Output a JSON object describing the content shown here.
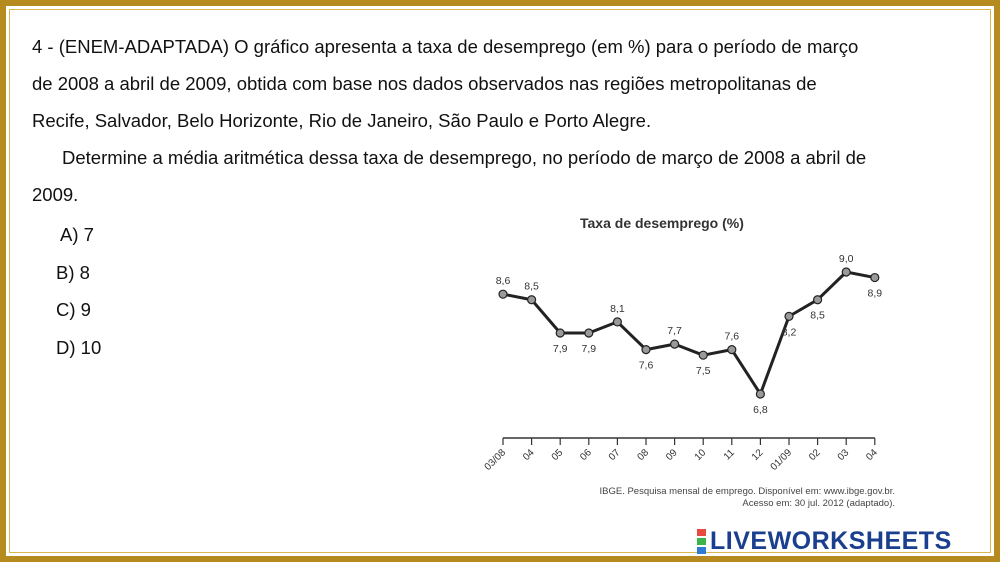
{
  "question": {
    "line1": "4 - (ENEM-ADAPTADA) O gráfico apresenta a taxa de desemprego (em %) para o período de março",
    "line2": "de 2008 a abril de 2009, obtida com base nos dados observados nas regiões metropolitanas de",
    "line3": "Recife, Salvador, Belo Horizonte, Rio de Janeiro, São Paulo e Porto Alegre.",
    "line4": "Determine a média aritmética dessa taxa de desemprego, no período de março de 2008 a abril de",
    "line5": "2009."
  },
  "options": [
    "A) 7",
    "B) 8",
    "C) 9",
    "D) 10"
  ],
  "chart_data": {
    "type": "line",
    "title": "Taxa de desemprego (%)",
    "categories": [
      "03/08",
      "04",
      "05",
      "06",
      "07",
      "08",
      "09",
      "10",
      "11",
      "12",
      "01/09",
      "02",
      "03",
      "04"
    ],
    "values": [
      8.6,
      8.5,
      7.9,
      7.9,
      8.1,
      7.6,
      7.7,
      7.5,
      7.6,
      6.8,
      8.2,
      8.5,
      9.0,
      8.9
    ],
    "data_labels": [
      "8,6",
      "8,5",
      "7,9",
      "7,9",
      "8,1",
      "7,6",
      "7,7",
      "7,5",
      "7,6",
      "6,8",
      "8,2",
      "8,5",
      "9,0",
      "8,9"
    ],
    "label_positions": [
      "above",
      "above",
      "below",
      "below",
      "above",
      "below",
      "above",
      "below",
      "above",
      "below",
      "below",
      "below",
      "above",
      "below"
    ],
    "xlabel": "",
    "ylabel": "",
    "grid": false,
    "line_color": "#222222",
    "marker_color": "#9a9a9a"
  },
  "source": {
    "line1": "IBGE. Pesquisa mensal de emprego. Disponível em: www.ibge.gov.br.",
    "line2": "Acesso em: 30 jul. 2012 (adaptado)."
  },
  "logo": {
    "text": "LIVEWORKSHEETS"
  },
  "colors": {
    "frame": "#b58a1e",
    "logo": "#1b3f8f"
  }
}
